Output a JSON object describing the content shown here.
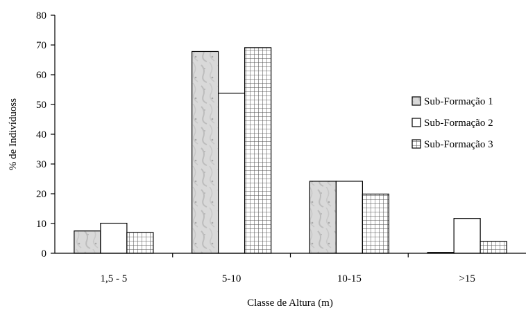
{
  "chart_data": {
    "type": "bar",
    "title": "",
    "xlabel": "Classe de Altura (m)",
    "ylabel": "% de Indivíduoss",
    "ylim": [
      0,
      80
    ],
    "yticks": [
      "0",
      "10",
      "20",
      "30",
      "40",
      "50",
      "60",
      "70",
      "80"
    ],
    "categories": [
      "1,5 - 5",
      "5-10",
      "10-15",
      ">15"
    ],
    "series": [
      {
        "name": "Sub-Formação 1",
        "values": [
          7.5,
          67.8,
          24.2,
          0.3
        ],
        "fill": "texture"
      },
      {
        "name": "Sub-Formação 2",
        "values": [
          10.1,
          53.8,
          24.2,
          11.7
        ],
        "fill": "white"
      },
      {
        "name": "Sub-Formação 3",
        "values": [
          7.0,
          69.1,
          19.9,
          4.0
        ],
        "fill": "grid"
      }
    ],
    "grid": false,
    "legend_position": "right",
    "colors": {
      "axis": "#000000",
      "bar_outline": "#000000",
      "texture_base": "#d9d9d9",
      "grid_fill": "#ffffff",
      "grid_line": "#555555"
    }
  }
}
